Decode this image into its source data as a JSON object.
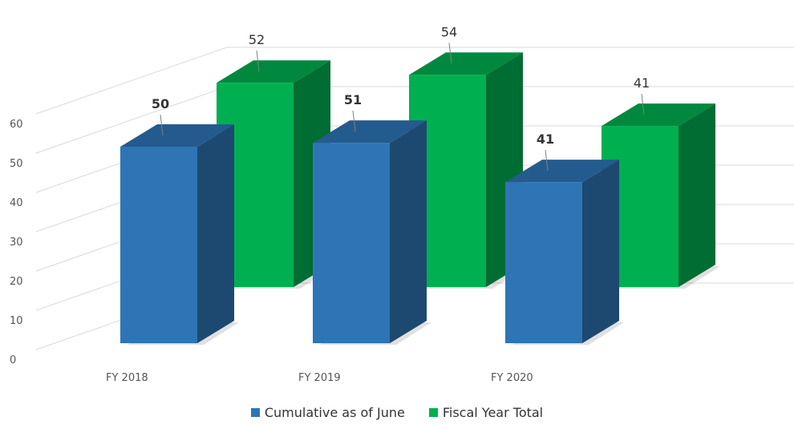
{
  "chart_data": {
    "type": "bar",
    "categories": [
      "FY 2018",
      "FY 2019",
      "FY 2020"
    ],
    "series": [
      {
        "name": "Cumulative as of June",
        "values": [
          50,
          51,
          41
        ],
        "color": "#2E75B6"
      },
      {
        "name": "Fiscal Year Total",
        "values": [
          52,
          54,
          41
        ],
        "color": "#00B050"
      }
    ],
    "ylim": [
      0,
      60
    ],
    "yticks": [
      0,
      10,
      20,
      30,
      40,
      50,
      60
    ],
    "grid": true,
    "legend_position": "bottom",
    "style": "3d-clustered-column"
  }
}
